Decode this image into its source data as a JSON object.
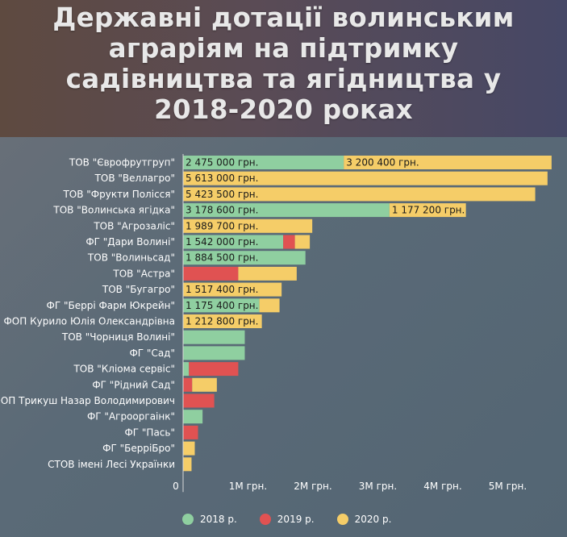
{
  "chart_data": {
    "type": "bar",
    "orientation": "horizontal",
    "stacked": true,
    "title": "Державні дотації волинським аграріям на підтримку садівництва та ягідництва у 2018-2020 роках",
    "title_lines": [
      "Державні дотації волинським",
      "аграріям на підтримку",
      "садівництва та ягідництва у",
      "2018-2020 роках"
    ],
    "categories": [
      "ТОВ \"Єврофрутгруп\"",
      "ТОВ \"Веллагро\"",
      "ТОВ \"Фрукти Полісся\"",
      "ТОВ \"Волинська ягідка\"",
      "ТОВ \"Агрозаліс\"",
      "ФГ \"Дари Волині\"",
      "ТОВ \"Волиньсад\"",
      "ТОВ \"Астра\"",
      "ТОВ \"Бугагро\"",
      "ФГ \"Беррі Фарм Юкрейн\"",
      "ФОП Курило Юлія Олександрівна",
      "ТОВ \"Чорниця Волині\"",
      "ФГ \"Сад\"",
      "ТОВ \"Кліома сервіс\"",
      "ФГ \"Рідний Сад\"",
      "ФОП Трикуш Назар Володимирович",
      "ФГ \"Агрооргаінк\"",
      "ФГ \"Пась\"",
      "ФГ \"БерріБро\"",
      "СТОВ імені Лесі Українки"
    ],
    "series": [
      {
        "name": "2018 р.",
        "color": "#8fcfa0",
        "values": [
          2475000,
          0,
          0,
          3178600,
          0,
          1542000,
          1884500,
          0,
          0,
          1175400,
          0,
          950000,
          950000,
          90000,
          0,
          0,
          300000,
          0,
          0,
          0
        ]
      },
      {
        "name": "2019 р.",
        "color": "#e05252",
        "values": [
          0,
          0,
          0,
          0,
          0,
          180000,
          0,
          850000,
          0,
          0,
          0,
          0,
          0,
          760000,
          140000,
          480000,
          0,
          230000,
          0,
          0
        ]
      },
      {
        "name": "2020 р.",
        "color": "#f5cd68",
        "values": [
          3200400,
          5613000,
          5423500,
          1177200,
          1989700,
          230000,
          0,
          900000,
          1517400,
          310000,
          1212800,
          0,
          0,
          0,
          380000,
          0,
          0,
          0,
          180000,
          130000
        ]
      }
    ],
    "data_labels": [
      [
        "2 475 000 грн.",
        "",
        "3 200 400 грн."
      ],
      [
        "",
        "",
        "5 613 000 грн."
      ],
      [
        "",
        "",
        "5 423 500 грн."
      ],
      [
        "3 178 600 грн.",
        "",
        "1 177 200 грн."
      ],
      [
        "",
        "",
        "1 989 700 грн."
      ],
      [
        "1 542 000 грн.",
        "",
        ""
      ],
      [
        "1 884 500 грн.",
        "",
        ""
      ],
      [
        "",
        "",
        ""
      ],
      [
        "",
        "",
        "1 517 400 грн."
      ],
      [
        "1 175 400 грн.",
        "",
        ""
      ],
      [
        "",
        "",
        "1 212 800 грн."
      ],
      [
        "",
        "",
        ""
      ],
      [
        "",
        "",
        ""
      ],
      [
        "",
        "",
        ""
      ],
      [
        "",
        "",
        ""
      ],
      [
        "",
        "",
        ""
      ],
      [
        "",
        "",
        ""
      ],
      [
        "",
        "",
        ""
      ],
      [
        "",
        "",
        ""
      ],
      [
        "",
        "",
        ""
      ]
    ],
    "x_ticks": [
      0,
      1000000,
      2000000,
      3000000,
      4000000,
      5000000
    ],
    "x_tick_labels": [
      "0",
      "1M грн.",
      "2M грн.",
      "3M грн.",
      "4M грн.",
      "5M грн."
    ],
    "xlim": [
      0,
      6000000
    ],
    "legend_position": "bottom",
    "grid": false
  }
}
